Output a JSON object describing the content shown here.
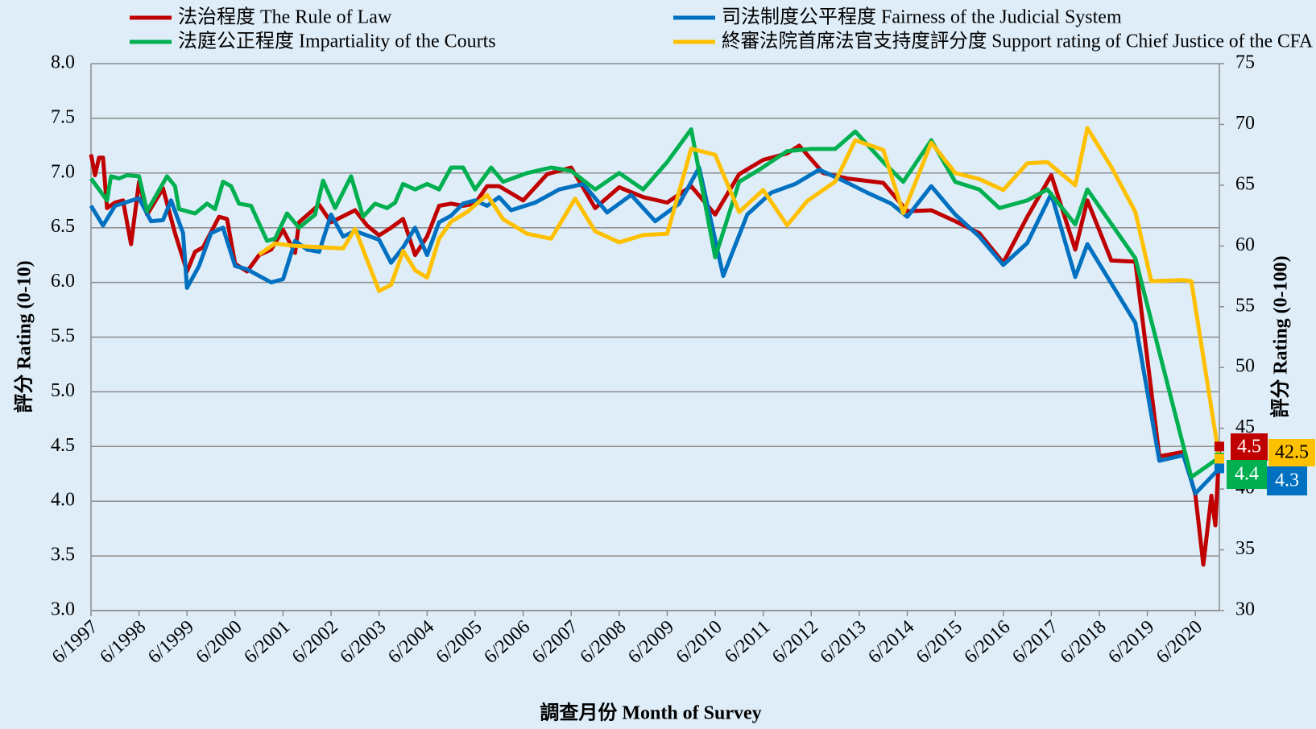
{
  "chart_data": {
    "type": "line",
    "x_label": "調查月份 Month of Survey",
    "y_label": "評分 Rating (0-10)",
    "y2_label": "評分 Rating (0-100)",
    "xlim": [
      "6/1997",
      "12/2020"
    ],
    "xticks": [
      "6/1997",
      "6/1998",
      "6/1999",
      "6/2000",
      "6/2001",
      "6/2002",
      "6/2003",
      "6/2004",
      "6/2005",
      "6/2006",
      "6/2007",
      "6/2008",
      "6/2009",
      "6/2010",
      "6/2011",
      "6/2012",
      "6/2013",
      "6/2014",
      "6/2015",
      "6/2016",
      "6/2017",
      "6/2018",
      "6/2019",
      "6/2020"
    ],
    "ylim": [
      3,
      8
    ],
    "yticks": [
      {
        "value": 3,
        "label": "3.0"
      },
      {
        "value": 3.5,
        "label": "3.5"
      },
      {
        "value": 4,
        "label": "4.0"
      },
      {
        "value": 4.5,
        "label": "4.5"
      },
      {
        "value": 5,
        "label": "5.0"
      },
      {
        "value": 5.5,
        "label": "5.5"
      },
      {
        "value": 6,
        "label": "6.0"
      },
      {
        "value": 6.5,
        "label": "6.5"
      },
      {
        "value": 7,
        "label": "7.0"
      },
      {
        "value": 7.5,
        "label": "7.5"
      },
      {
        "value": 8,
        "label": "8.0"
      }
    ],
    "y2lim": [
      30,
      75
    ],
    "y2ticks": [
      30,
      35,
      40,
      45,
      50,
      55,
      60,
      65,
      70,
      75
    ],
    "grid": true,
    "legend": "top",
    "series": [
      {
        "name": "法治程度 The Rule of Law",
        "color": "#c00000",
        "axis": "y",
        "x": [
          "6/1997",
          "7/1997",
          "8/1997",
          "9/1997",
          "10/1997",
          "12/1997",
          "2/1998",
          "4/1998",
          "6/1998",
          "8/1998",
          "12/1998",
          "3/1999",
          "6/1999",
          "8/1999",
          "10/1999",
          "2/2000",
          "4/2000",
          "6/2000",
          "9/2000",
          "12/2000",
          "3/2001",
          "6/2001",
          "9/2001",
          "10/2001",
          "3/2002",
          "6/2002",
          "12/2002",
          "3/2003",
          "6/2003",
          "9/2003",
          "12/2003",
          "3/2004",
          "6/2004",
          "9/2004",
          "12/2004",
          "3/2005",
          "6/2005",
          "9/2005",
          "12/2005",
          "6/2006",
          "12/2006",
          "6/2007",
          "12/2007",
          "6/2008",
          "12/2008",
          "6/2009",
          "12/2009",
          "6/2010",
          "12/2010",
          "6/2011",
          "12/2011",
          "3/2012",
          "9/2012",
          "3/2013",
          "12/2013",
          "6/2014",
          "12/2014",
          "6/2015",
          "12/2015",
          "6/2016",
          "12/2016",
          "6/2017",
          "12/2017",
          "3/2018",
          "9/2018",
          "3/2019",
          "9/2019",
          "3/2020",
          "6/2020",
          "8/2020",
          "10/2020",
          "11/2020",
          "12/2020"
        ],
        "values": [
          7.17,
          6.98,
          7.14,
          7.14,
          6.68,
          6.73,
          6.75,
          6.35,
          6.92,
          6.62,
          6.86,
          6.45,
          6.1,
          6.28,
          6.32,
          6.6,
          6.58,
          6.17,
          6.1,
          6.25,
          6.3,
          6.48,
          6.27,
          6.55,
          6.71,
          6.55,
          6.66,
          6.52,
          6.43,
          6.5,
          6.58,
          6.25,
          6.42,
          6.7,
          6.72,
          6.7,
          6.72,
          6.88,
          6.88,
          6.75,
          6.99,
          7.05,
          6.68,
          6.87,
          6.78,
          6.73,
          6.88,
          6.62,
          6.99,
          7.12,
          7.18,
          7.25,
          7.0,
          6.95,
          6.91,
          6.65,
          6.66,
          6.56,
          6.45,
          6.18,
          6.6,
          6.98,
          6.3,
          6.75,
          6.2,
          6.19,
          4.41,
          4.45,
          4.06,
          3.42,
          4.05,
          3.78,
          4.5
        ]
      },
      {
        "name": "司法制度公平程度 Fairness of the Judicial System",
        "color": "#0070c0",
        "axis": "y",
        "x": [
          "6/1997",
          "9/1997",
          "12/1997",
          "6/1998",
          "9/1998",
          "12/1998",
          "2/1999",
          "5/1999",
          "6/1999",
          "9/1999",
          "12/1999",
          "3/2000",
          "6/2000",
          "9/2000",
          "3/2001",
          "6/2001",
          "9/2001",
          "12/2001",
          "3/2002",
          "6/2002",
          "9/2002",
          "12/2002",
          "6/2003",
          "9/2003",
          "12/2003",
          "3/2004",
          "6/2004",
          "9/2004",
          "12/2004",
          "3/2005",
          "6/2005",
          "9/2005",
          "12/2005",
          "3/2006",
          "9/2006",
          "3/2007",
          "9/2007",
          "3/2008",
          "9/2008",
          "3/2009",
          "9/2009",
          "2/2010",
          "8/2010",
          "2/2011",
          "8/2011",
          "2/2012",
          "8/2012",
          "2/2013",
          "8/2013",
          "2/2014",
          "6/2014",
          "12/2014",
          "6/2015",
          "12/2015",
          "6/2016",
          "12/2016",
          "6/2017",
          "12/2017",
          "3/2018",
          "3/2019",
          "9/2019",
          "3/2020",
          "6/2020",
          "12/2020"
        ],
        "values": [
          6.7,
          6.52,
          6.7,
          6.77,
          6.56,
          6.57,
          6.75,
          6.45,
          5.95,
          6.15,
          6.45,
          6.5,
          6.15,
          6.12,
          6.0,
          6.03,
          6.38,
          6.3,
          6.28,
          6.62,
          6.42,
          6.47,
          6.39,
          6.18,
          6.32,
          6.5,
          6.25,
          6.55,
          6.61,
          6.72,
          6.75,
          6.7,
          6.78,
          6.66,
          6.73,
          6.85,
          6.9,
          6.64,
          6.8,
          6.56,
          6.72,
          7.05,
          6.06,
          6.62,
          6.82,
          6.9,
          7.03,
          6.93,
          6.82,
          6.72,
          6.6,
          6.88,
          6.62,
          6.42,
          6.16,
          6.36,
          6.81,
          6.05,
          6.35,
          5.63,
          4.37,
          4.42,
          4.07,
          4.3
        ]
      },
      {
        "name": "法庭公正程度 Impartiality of the Courts",
        "color": "#00b050",
        "axis": "y",
        "x": [
          "6/1997",
          "10/1997",
          "11/1997",
          "1/1998",
          "3/1998",
          "6/1998",
          "8/1998",
          "1/1999",
          "3/1999",
          "4/1999",
          "8/1999",
          "11/1999",
          "1/2000",
          "3/2000",
          "5/2000",
          "7/2000",
          "10/2000",
          "2/2001",
          "4/2001",
          "7/2001",
          "10/2001",
          "2/2002",
          "4/2002",
          "7/2002",
          "11/2002",
          "2/2003",
          "5/2003",
          "8/2003",
          "10/2003",
          "12/2003",
          "3/2004",
          "6/2004",
          "9/2004",
          "12/2004",
          "3/2005",
          "6/2005",
          "10/2005",
          "1/2006",
          "7/2006",
          "1/2007",
          "6/2007",
          "12/2007",
          "6/2008",
          "12/2008",
          "6/2009",
          "12/2009",
          "6/2010",
          "12/2010",
          "5/2011",
          "12/2011",
          "6/2012",
          "12/2012",
          "5/2013",
          "12/2013",
          "5/2014",
          "12/2014",
          "6/2015",
          "12/2015",
          "5/2016",
          "12/2016",
          "5/2017",
          "12/2017",
          "3/2018",
          "3/2019",
          "5/2020",
          "12/2020"
        ],
        "values": [
          6.95,
          6.75,
          6.97,
          6.95,
          6.98,
          6.97,
          6.65,
          6.97,
          6.88,
          6.67,
          6.63,
          6.72,
          6.67,
          6.92,
          6.88,
          6.72,
          6.7,
          6.38,
          6.4,
          6.63,
          6.5,
          6.62,
          6.93,
          6.68,
          6.97,
          6.6,
          6.72,
          6.68,
          6.73,
          6.9,
          6.85,
          6.9,
          6.85,
          7.05,
          7.05,
          6.85,
          7.05,
          6.92,
          7.0,
          7.05,
          7.02,
          6.85,
          7.0,
          6.85,
          7.1,
          7.4,
          6.23,
          6.92,
          7.03,
          7.2,
          7.22,
          7.22,
          7.38,
          7.1,
          6.92,
          7.3,
          6.92,
          6.85,
          6.68,
          6.75,
          6.85,
          6.53,
          6.85,
          6.22,
          4.22,
          4.4
        ]
      },
      {
        "name": "終審法院首席法官支持度評分度 Support rating of Chief Justice of the CFA",
        "color": "#ffc000",
        "axis": "y2",
        "x": [
          "12/2000",
          "4/2001",
          "9/2001",
          "9/2002",
          "12/2002",
          "6/2003",
          "9/2003",
          "12/2003",
          "3/2004",
          "6/2004",
          "9/2004",
          "12/2004",
          "4/2005",
          "9/2005",
          "1/2006",
          "7/2006",
          "1/2007",
          "7/2007",
          "12/2007",
          "6/2008",
          "12/2008",
          "6/2009",
          "12/2009",
          "6/2010",
          "12/2010",
          "6/2011",
          "12/2011",
          "5/2012",
          "12/2012",
          "5/2013",
          "12/2013",
          "5/2014",
          "12/2014",
          "6/2015",
          "12/2015",
          "6/2016",
          "12/2016",
          "5/2017",
          "12/2017",
          "3/2018",
          "9/2018",
          "3/2019",
          "7/2019",
          "3/2020",
          "5/2020",
          "12/2020"
        ],
        "values": [
          59.3,
          60.2,
          60.0,
          59.8,
          61.4,
          56.3,
          56.8,
          59.6,
          58.0,
          57.4,
          60.6,
          62.0,
          62.8,
          64.2,
          62.2,
          61.0,
          60.6,
          63.9,
          61.2,
          60.3,
          60.9,
          61.0,
          68.0,
          67.5,
          62.8,
          64.6,
          61.7,
          63.7,
          65.3,
          68.7,
          67.9,
          62.7,
          68.5,
          66.0,
          65.5,
          64.6,
          66.8,
          66.9,
          65.0,
          69.7,
          66.5,
          62.8,
          57.1,
          57.2,
          57.1,
          42.5
        ]
      }
    ]
  }
}
